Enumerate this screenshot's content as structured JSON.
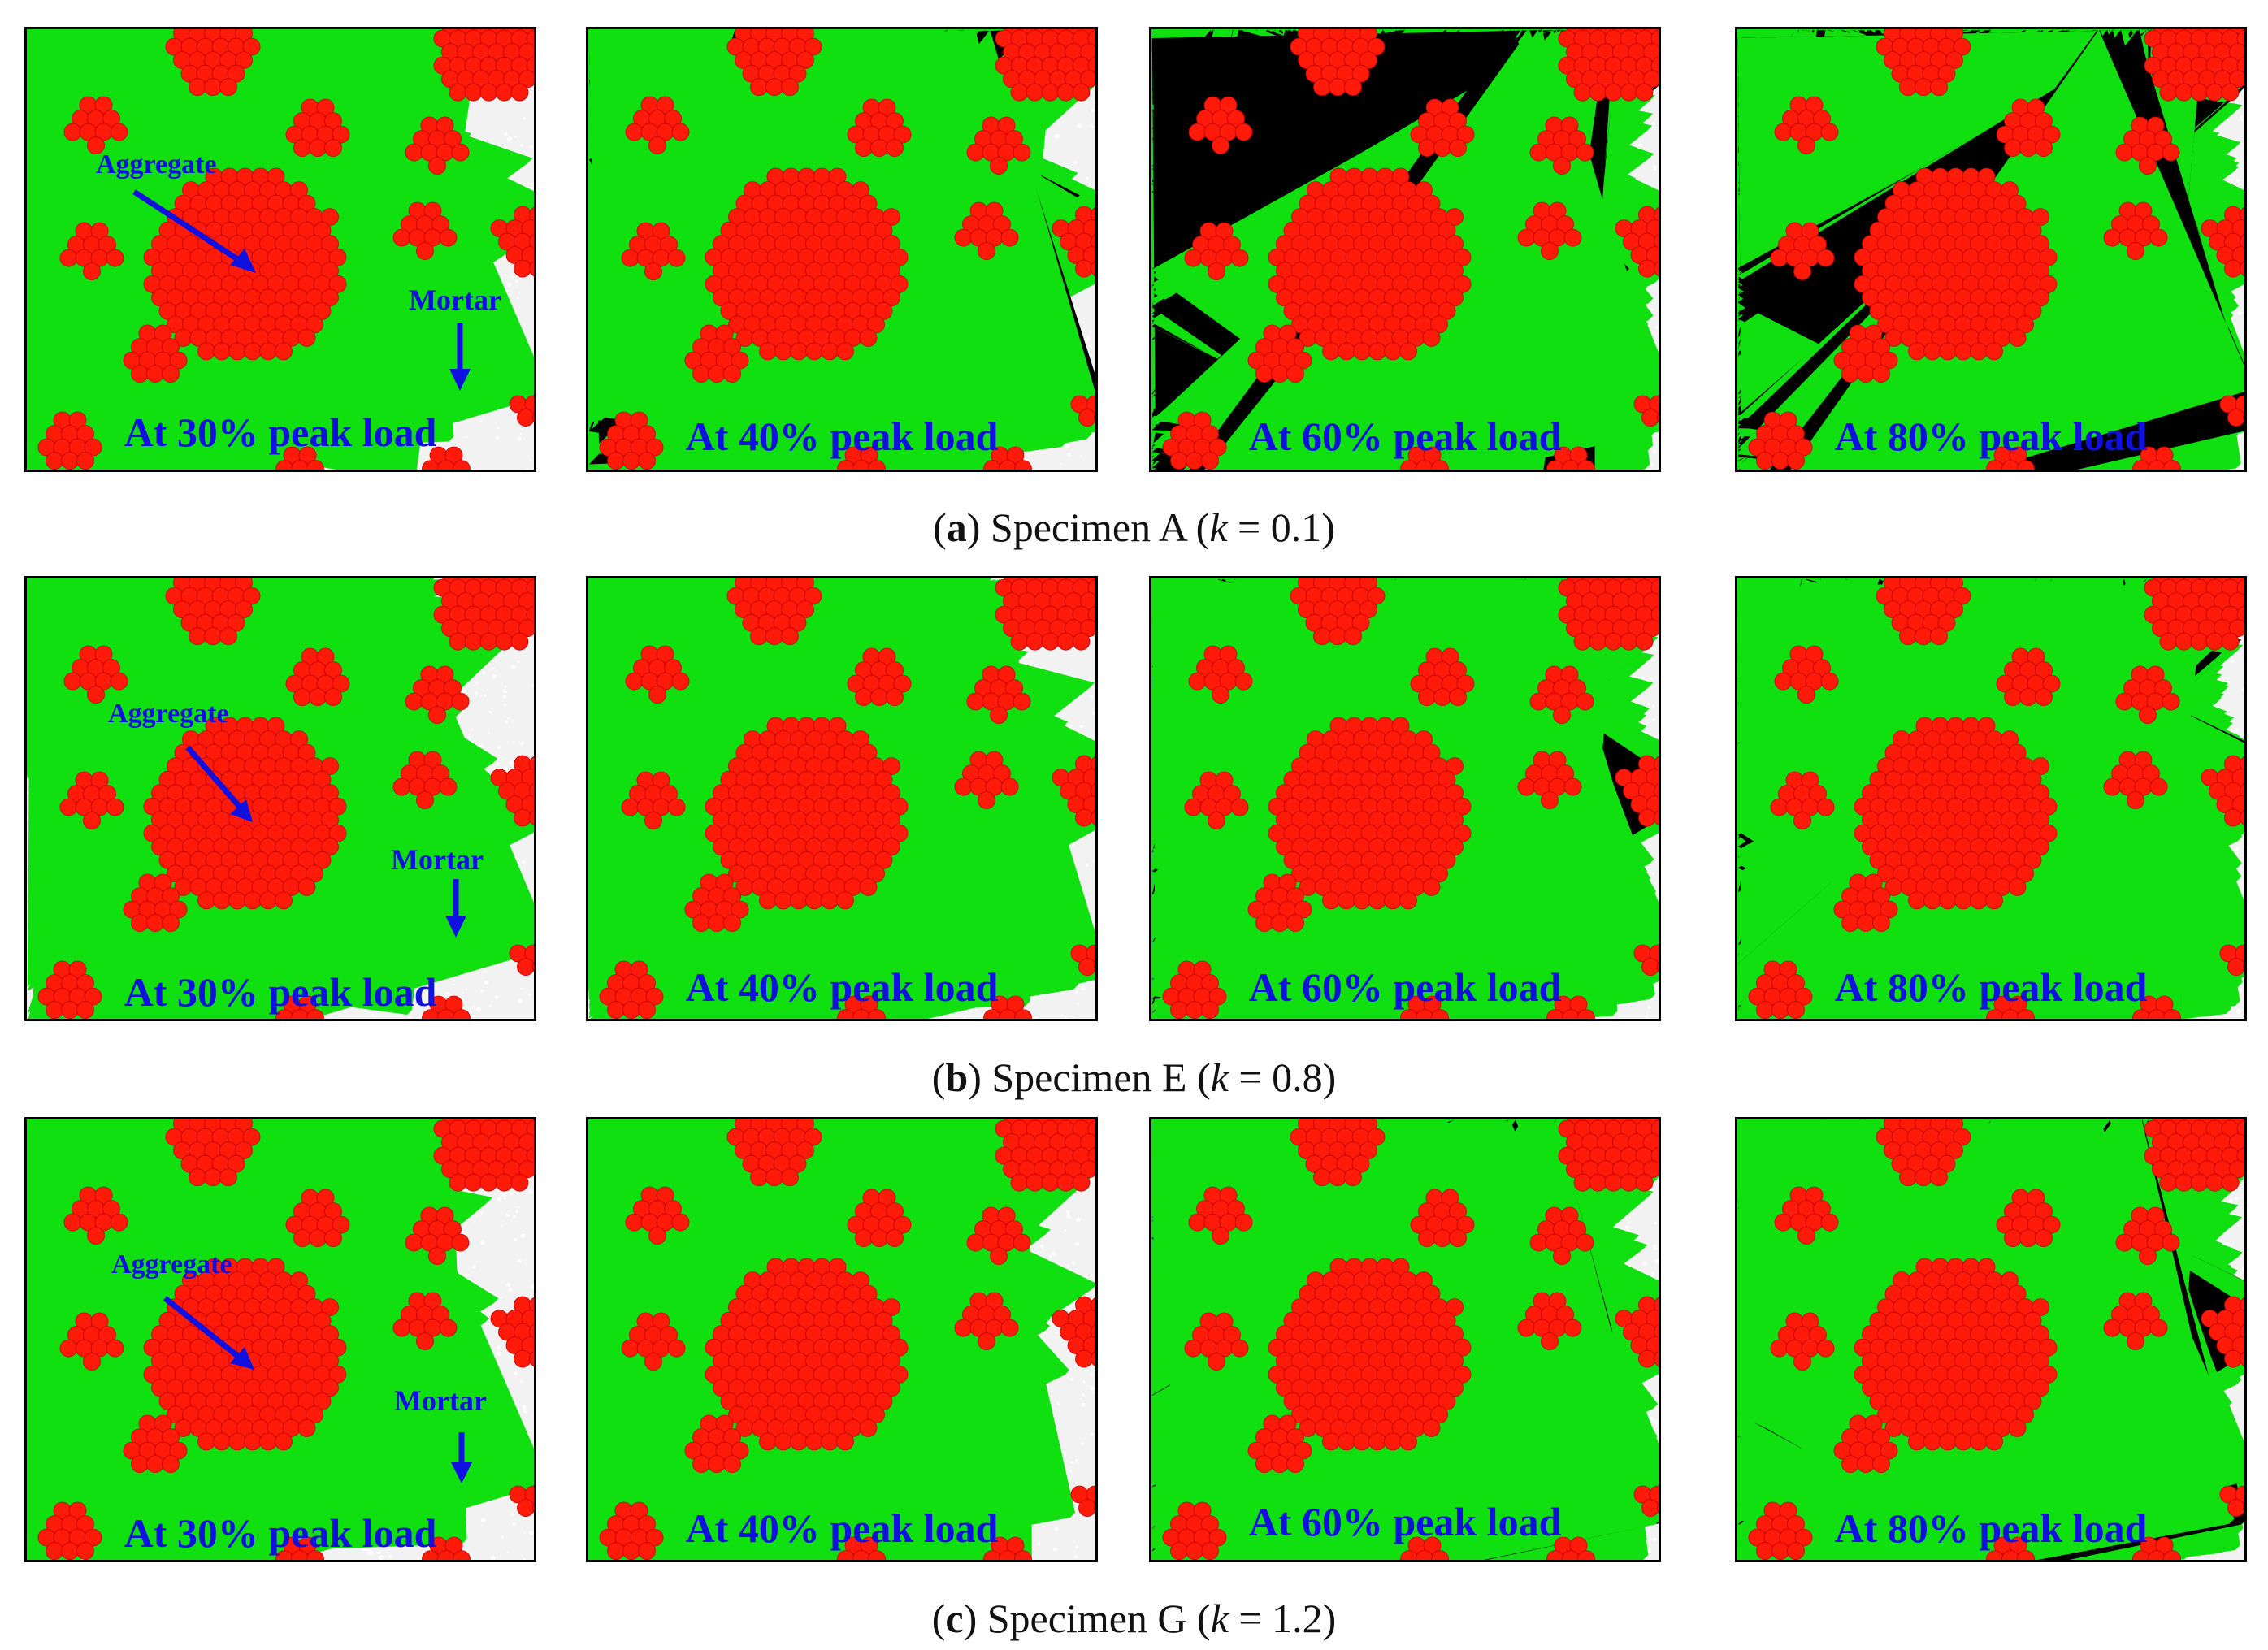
{
  "figure": {
    "rows": [
      {
        "caption": {
          "label": "a",
          "specimen": "Specimen A",
          "k_symbol": "k",
          "k_value": "0.1"
        },
        "seed": 11,
        "annotations": {
          "aggregate": "Aggregate",
          "mortar": "Mortar"
        },
        "panels": [
          {
            "stage": "At 30% peak load",
            "crack_level": 0.05,
            "dark_level": 0.0
          },
          {
            "stage": "At 40% peak load",
            "crack_level": 0.1,
            "dark_level": 0.04
          },
          {
            "stage": "At 60% peak load",
            "crack_level": 0.4,
            "dark_level": 0.08
          },
          {
            "stage": "At 80% peak load",
            "crack_level": 0.75,
            "dark_level": 0.12
          }
        ]
      },
      {
        "caption": {
          "label": "b",
          "specimen": "Specimen E",
          "k_symbol": "k",
          "k_value": "0.8"
        },
        "seed": 23,
        "annotations": {
          "aggregate": "Aggregate",
          "mortar": "Mortar"
        },
        "panels": [
          {
            "stage": "At 30% peak load",
            "crack_level": 0.0,
            "dark_level": 0.0
          },
          {
            "stage": "At 40% peak load",
            "crack_level": 0.03,
            "dark_level": 0.0
          },
          {
            "stage": "At 60% peak load",
            "crack_level": 0.5,
            "dark_level": 0.02
          },
          {
            "stage": "At 80% peak load",
            "crack_level": 0.85,
            "dark_level": 0.02
          }
        ]
      },
      {
        "caption": {
          "label": "c",
          "specimen": "Specimen G",
          "k_symbol": "k",
          "k_value": "1.2"
        },
        "seed": 37,
        "annotations": {
          "aggregate": "Aggregate",
          "mortar": "Mortar"
        },
        "panels": [
          {
            "stage": "At 30% peak load",
            "crack_level": 0.0,
            "dark_level": 0.0
          },
          {
            "stage": "At 40% peak load",
            "crack_level": 0.02,
            "dark_level": 0.0
          },
          {
            "stage": "At 60% peak load",
            "crack_level": 0.55,
            "dark_level": 0.01
          },
          {
            "stage": "At 80% peak load",
            "crack_level": 0.8,
            "dark_level": 0.01
          }
        ]
      }
    ],
    "colors": {
      "aggregate": "#ff1a0a",
      "crack_tension": "#10e010",
      "crack_shear": "#000000",
      "mortar": "#f2f2f2",
      "label": "#1010e0"
    }
  }
}
